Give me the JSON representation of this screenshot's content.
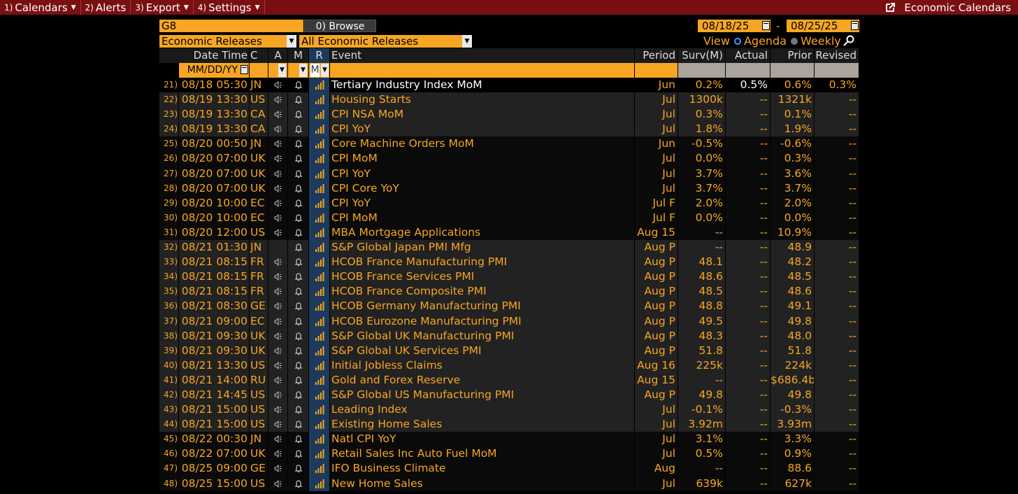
{
  "menu": {
    "items": [
      {
        "num": "1)",
        "label": "Calendars"
      },
      {
        "num": "2)",
        "label": "Alerts"
      },
      {
        "num": "3)",
        "label": "Export"
      },
      {
        "num": "4)",
        "label": "Settings"
      }
    ],
    "right_label": "Economic Calendars"
  },
  "controls": {
    "region": "G8",
    "browse_label": "0) Browse",
    "release_type": "Economic Releases",
    "release_filter": "All Economic Releases",
    "start_date": "08/18/25",
    "end_date": "08/25/25",
    "date_sep": "-",
    "view_label": "View",
    "view_agenda": "Agenda",
    "view_weekly": "Weekly"
  },
  "table": {
    "headers": {
      "date_time": "Date Time",
      "c": "C",
      "a": "A",
      "m": "M",
      "r": "R",
      "event": "Event",
      "period": "Period",
      "surv": "Surv(M)",
      "actual": "Actual",
      "prior": "Prior",
      "revised": "Revised"
    },
    "filter": {
      "date_format": "MM/DD/YY",
      "r_value": "M"
    },
    "rows": [
      {
        "n": "21)",
        "dt": "08/18 05:30",
        "c": "JN",
        "event": "Tertiary Industry Index MoM",
        "period": "Jun",
        "surv": "0.2%",
        "actual": "0.5%",
        "prior": "0.6%",
        "revised": "0.3%"
      },
      {
        "n": "22)",
        "dt": "08/19 13:30",
        "c": "US",
        "event": "Housing Starts",
        "period": "Jul",
        "surv": "1300k",
        "actual": "--",
        "prior": "1321k",
        "revised": "--"
      },
      {
        "n": "23)",
        "dt": "08/19 13:30",
        "c": "CA",
        "event": "CPI NSA MoM",
        "period": "Jul",
        "surv": "0.3%",
        "actual": "--",
        "prior": "0.1%",
        "revised": "--"
      },
      {
        "n": "24)",
        "dt": "08/19 13:30",
        "c": "CA",
        "event": "CPI YoY",
        "period": "Jul",
        "surv": "1.8%",
        "actual": "--",
        "prior": "1.9%",
        "revised": "--"
      },
      {
        "n": "25)",
        "dt": "08/20 00:50",
        "c": "JN",
        "event": "Core Machine Orders MoM",
        "period": "Jun",
        "surv": "-0.5%",
        "actual": "--",
        "prior": "-0.6%",
        "revised": "--"
      },
      {
        "n": "26)",
        "dt": "08/20 07:00",
        "c": "UK",
        "event": "CPI MoM",
        "period": "Jul",
        "surv": "0.0%",
        "actual": "--",
        "prior": "0.3%",
        "revised": "--"
      },
      {
        "n": "27)",
        "dt": "08/20 07:00",
        "c": "UK",
        "event": "CPI YoY",
        "period": "Jul",
        "surv": "3.7%",
        "actual": "--",
        "prior": "3.6%",
        "revised": "--"
      },
      {
        "n": "28)",
        "dt": "08/20 07:00",
        "c": "UK",
        "event": "CPI Core YoY",
        "period": "Jul",
        "surv": "3.7%",
        "actual": "--",
        "prior": "3.7%",
        "revised": "--"
      },
      {
        "n": "29)",
        "dt": "08/20 10:00",
        "c": "EC",
        "event": "CPI YoY",
        "period": "Jul F",
        "surv": "2.0%",
        "actual": "--",
        "prior": "2.0%",
        "revised": "--"
      },
      {
        "n": "30)",
        "dt": "08/20 10:00",
        "c": "EC",
        "event": "CPI MoM",
        "period": "Jul F",
        "surv": "0.0%",
        "actual": "--",
        "prior": "0.0%",
        "revised": "--"
      },
      {
        "n": "31)",
        "dt": "08/20 12:00",
        "c": "US",
        "event": "MBA Mortgage Applications",
        "period": "Aug 15",
        "surv": "--",
        "actual": "--",
        "prior": "10.9%",
        "revised": "--"
      },
      {
        "n": "32)",
        "dt": "08/21 01:30",
        "c": "JN",
        "event": "S&P Global Japan PMI Mfg",
        "period": "Aug P",
        "surv": "--",
        "actual": "--",
        "prior": "48.9",
        "revised": "--"
      },
      {
        "n": "33)",
        "dt": "08/21 08:15",
        "c": "FR",
        "event": "HCOB France Manufacturing PMI",
        "period": "Aug P",
        "surv": "48.1",
        "actual": "--",
        "prior": "48.2",
        "revised": "--"
      },
      {
        "n": "34)",
        "dt": "08/21 08:15",
        "c": "FR",
        "event": "HCOB France Services PMI",
        "period": "Aug P",
        "surv": "48.6",
        "actual": "--",
        "prior": "48.5",
        "revised": "--"
      },
      {
        "n": "35)",
        "dt": "08/21 08:15",
        "c": "FR",
        "event": "HCOB France Composite PMI",
        "period": "Aug P",
        "surv": "48.5",
        "actual": "--",
        "prior": "48.6",
        "revised": "--"
      },
      {
        "n": "36)",
        "dt": "08/21 08:30",
        "c": "GE",
        "event": "HCOB Germany Manufacturing PMI",
        "period": "Aug P",
        "surv": "48.8",
        "actual": "--",
        "prior": "49.1",
        "revised": "--"
      },
      {
        "n": "37)",
        "dt": "08/21 09:00",
        "c": "EC",
        "event": "HCOB Eurozone Manufacturing PMI",
        "period": "Aug P",
        "surv": "49.5",
        "actual": "--",
        "prior": "49.8",
        "revised": "--"
      },
      {
        "n": "38)",
        "dt": "08/21 09:30",
        "c": "UK",
        "event": "S&P Global UK Manufacturing PMI",
        "period": "Aug P",
        "surv": "48.3",
        "actual": "--",
        "prior": "48.0",
        "revised": "--"
      },
      {
        "n": "39)",
        "dt": "08/21 09:30",
        "c": "UK",
        "event": "S&P Global UK Services PMI",
        "period": "Aug P",
        "surv": "51.8",
        "actual": "--",
        "prior": "51.8",
        "revised": "--"
      },
      {
        "n": "40)",
        "dt": "08/21 13:30",
        "c": "US",
        "event": "Initial Jobless Claims",
        "period": "Aug 16",
        "surv": "225k",
        "actual": "--",
        "prior": "224k",
        "revised": "--"
      },
      {
        "n": "41)",
        "dt": "08/21 14:00",
        "c": "RU",
        "event": "Gold and Forex Reserve",
        "period": "Aug 15",
        "surv": "--",
        "actual": "--",
        "prior": "$686.4b",
        "revised": "--"
      },
      {
        "n": "42)",
        "dt": "08/21 14:45",
        "c": "US",
        "event": "S&P Global US Manufacturing PMI",
        "period": "Aug P",
        "surv": "49.8",
        "actual": "--",
        "prior": "49.8",
        "revised": "--"
      },
      {
        "n": "43)",
        "dt": "08/21 15:00",
        "c": "US",
        "event": "Leading Index",
        "period": "Jul",
        "surv": "-0.1%",
        "actual": "--",
        "prior": "-0.3%",
        "revised": "--"
      },
      {
        "n": "44)",
        "dt": "08/21 15:00",
        "c": "US",
        "event": "Existing Home Sales",
        "period": "Jul",
        "surv": "3.92m",
        "actual": "--",
        "prior": "3.93m",
        "revised": "--"
      },
      {
        "n": "45)",
        "dt": "08/22 00:30",
        "c": "JN",
        "event": "Natl CPI YoY",
        "period": "Jul",
        "surv": "3.1%",
        "actual": "--",
        "prior": "3.3%",
        "revised": "--"
      },
      {
        "n": "46)",
        "dt": "08/22 07:00",
        "c": "UK",
        "event": "Retail Sales Inc Auto Fuel MoM",
        "period": "Jul",
        "surv": "0.5%",
        "actual": "--",
        "prior": "0.9%",
        "revised": "--"
      },
      {
        "n": "47)",
        "dt": "08/25 09:00",
        "c": "GE",
        "event": "IFO Business Climate",
        "period": "Aug",
        "surv": "--",
        "actual": "--",
        "prior": "88.6",
        "revised": "--"
      },
      {
        "n": "48)",
        "dt": "08/25 15:00",
        "c": "US",
        "event": "New Home Sales",
        "period": "Jul",
        "surv": "639k",
        "actual": "--",
        "prior": "627k",
        "revised": "--"
      }
    ]
  },
  "colors": {
    "accent": "#f6a623",
    "menubar": "#7a0f12",
    "selected_col": "#1c3a5c"
  },
  "icons": {
    "alert": "speaker-icon",
    "monitor": "bell-icon",
    "relevance": "bar-chart-icon",
    "launch": "launch-icon",
    "search": "search-person-icon"
  }
}
